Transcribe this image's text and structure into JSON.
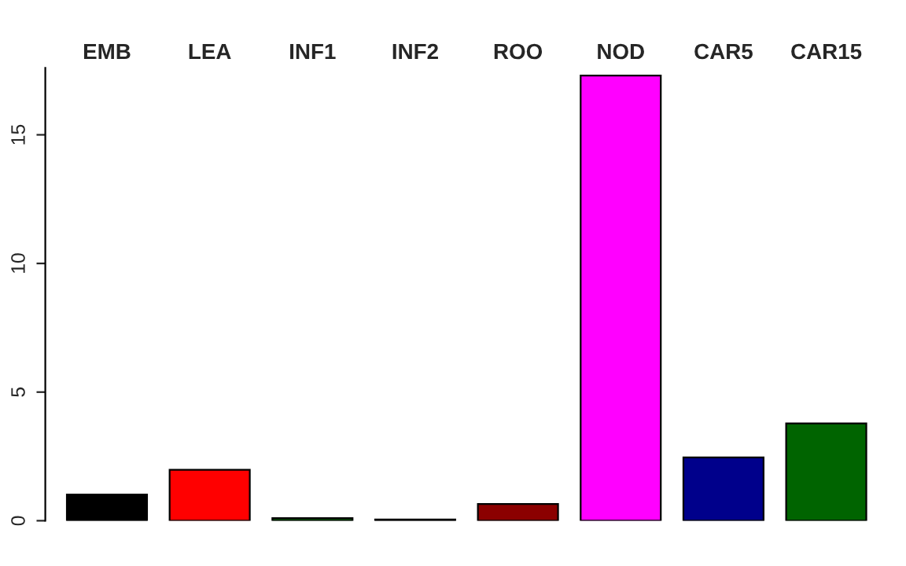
{
  "chart_data": {
    "type": "bar",
    "categories": [
      "EMB",
      "LEA",
      "INF1",
      "INF2",
      "ROO",
      "NOD",
      "CAR5",
      "CAR15"
    ],
    "values": [
      1.02,
      1.98,
      0.1,
      0.05,
      0.65,
      17.3,
      2.46,
      3.78
    ],
    "colors": [
      "#000000",
      "#ff0000",
      "#006400",
      "#000000",
      "#8b0000",
      "#ff00ff",
      "#00008b",
      "#006400"
    ],
    "ylim": [
      0,
      17.6
    ],
    "yticks": [
      0,
      5,
      10,
      15
    ],
    "grid": false
  }
}
